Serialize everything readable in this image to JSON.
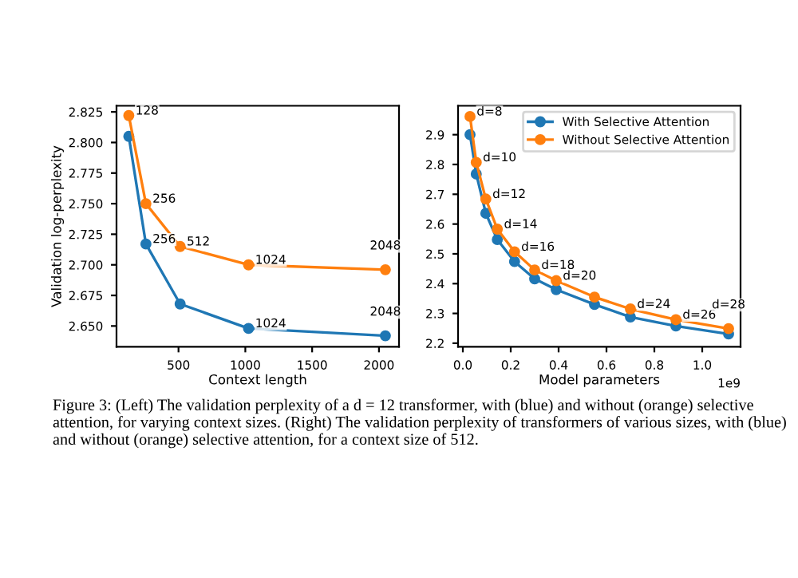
{
  "chart_data": [
    {
      "type": "line",
      "xlabel": "Context length",
      "ylabel": "Validation log-perplexity",
      "x": [
        128,
        256,
        512,
        1024,
        2048
      ],
      "xlim": [
        36,
        2150
      ],
      "xticks": [
        500,
        1000,
        1500,
        2000
      ],
      "ylim": [
        2.633,
        2.83
      ],
      "yticks": [
        {
          "value": 2.65,
          "label": "2.650"
        },
        {
          "value": 2.675,
          "label": "2.675"
        },
        {
          "value": 2.7,
          "label": "2.700"
        },
        {
          "value": 2.725,
          "label": "2.725"
        },
        {
          "value": 2.75,
          "label": "2.750"
        },
        {
          "value": 2.775,
          "label": "2.775"
        },
        {
          "value": 2.8,
          "label": "2.800"
        },
        {
          "value": 2.825,
          "label": "2.825"
        }
      ],
      "marker": "circle",
      "grid": false,
      "legend": false,
      "series": [
        {
          "color": "#1f77b4",
          "values": [
            2.805,
            2.717,
            2.668,
            2.648,
            2.642
          ]
        },
        {
          "color": "#ff7f0e",
          "values": [
            2.822,
            2.75,
            2.715,
            2.7,
            2.696
          ]
        }
      ],
      "annotations": [
        {
          "text": "128",
          "x": 128,
          "y": 2.822
        },
        {
          "text": "256",
          "x": 256,
          "y": 2.75
        },
        {
          "text": "512",
          "x": 512,
          "y": 2.715
        },
        {
          "text": "1024",
          "x": 1024,
          "y": 2.7
        },
        {
          "text": "2048",
          "x": 2048,
          "y": 2.696
        },
        {
          "text": "256",
          "x": 256,
          "y": 2.717
        },
        {
          "text": "1024",
          "x": 1024,
          "y": 2.648
        },
        {
          "text": "2048",
          "x": 2048,
          "y": 2.642
        }
      ]
    },
    {
      "type": "line",
      "xlabel": "Model parameters",
      "xlim": [
        -0.02,
        1.16
      ],
      "xticks": [
        {
          "value": 0,
          "label": "0.0"
        },
        0.2,
        0.4,
        0.6,
        0.8,
        {
          "value": 1,
          "label": "1.0"
        }
      ],
      "ylim": [
        2.188,
        2.997
      ],
      "yticks": [
        2.2,
        2.3,
        2.4,
        2.5,
        2.6,
        2.7,
        2.8,
        2.9
      ],
      "marker": "circle",
      "grid": false,
      "legend": "top right",
      "x": [
        0.03,
        0.056,
        0.096,
        0.144,
        0.216,
        0.3,
        0.39,
        0.55,
        0.7,
        0.89,
        1.11
      ],
      "series": [
        {
          "name": "With Selective Attention",
          "color": "#1f77b4",
          "values": [
            2.9,
            2.768,
            2.636,
            2.548,
            2.474,
            2.416,
            2.38,
            2.33,
            2.288,
            2.258,
            2.231
          ]
        },
        {
          "name": "Without Selective Attention",
          "color": "#ff7f0e",
          "values": [
            2.961,
            2.807,
            2.684,
            2.583,
            2.507,
            2.446,
            2.41,
            2.355,
            2.315,
            2.279,
            2.249
          ]
        }
      ],
      "annotations": [
        {
          "text": "d=8",
          "x": 0.03,
          "y": 2.961
        },
        {
          "text": "d=10",
          "x": 0.056,
          "y": 2.807
        },
        {
          "text": "d=12",
          "x": 0.096,
          "y": 2.684
        },
        {
          "text": "d=14",
          "x": 0.144,
          "y": 2.583
        },
        {
          "text": "d=16",
          "x": 0.216,
          "y": 2.507
        },
        {
          "text": "d=18",
          "x": 0.3,
          "y": 2.446
        },
        {
          "text": "d=20",
          "x": 0.39,
          "y": 2.41
        },
        {
          "text": "d=24",
          "x": 0.7,
          "y": 2.315
        },
        {
          "text": "d=26",
          "x": 0.89,
          "y": 2.279
        },
        {
          "text": "d=28",
          "x": 1.11,
          "y": 2.249
        },
        "1e9",
        "Figure 3: (Left) The validation perplexity of a d = 12 transformer, with (blue) and without (orange) selective attention, for varying context sizes. (Right) The validation perplexity of transformers of various sizes, with (blue) and without (orange) selective attention, for a context size of 512."
      ]
    }
  ]
}
